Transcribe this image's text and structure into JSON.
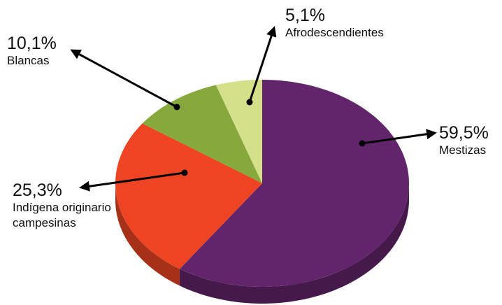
{
  "chart_data": {
    "type": "pie",
    "categories": [
      "Mestizas",
      "Indígena originario campesinas",
      "Blancas",
      "Afrodescendientes"
    ],
    "values": [
      59.5,
      25.3,
      10.1,
      5.1
    ],
    "value_labels": [
      "59,5%",
      "25,3%",
      "10,1%",
      "5,1%"
    ],
    "colors": [
      "#62246a",
      "#ee4423",
      "#86a83c",
      "#d4e08a"
    ]
  }
}
